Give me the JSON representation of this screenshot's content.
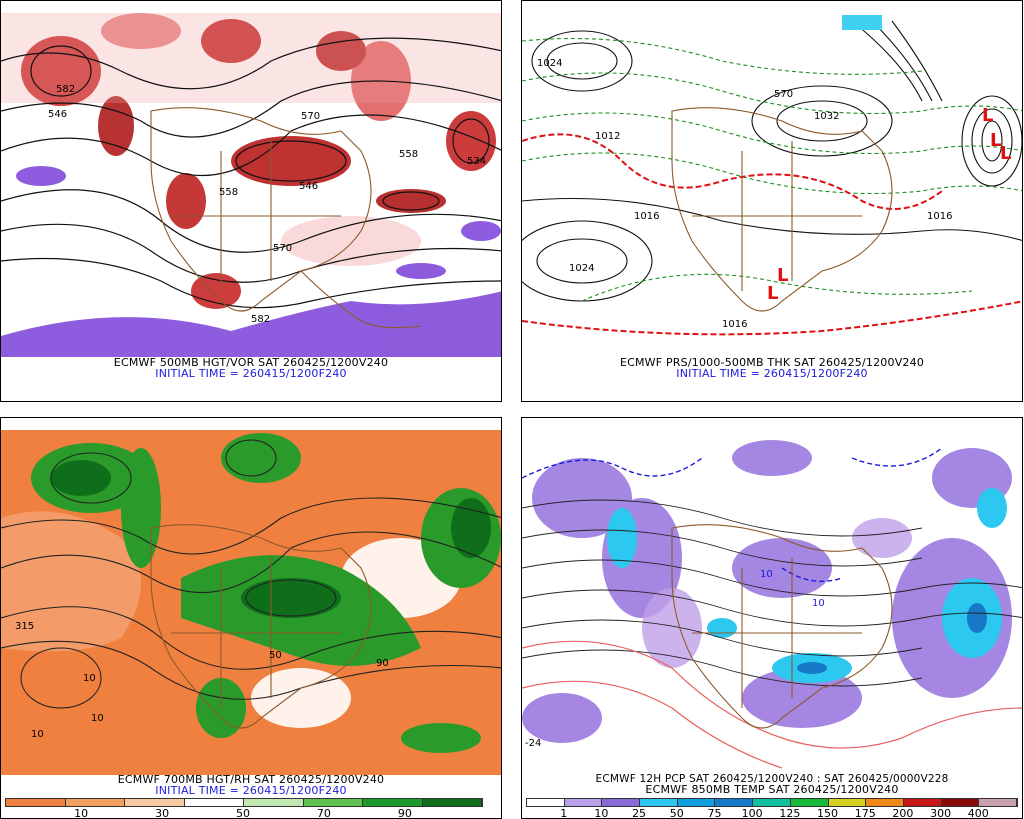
{
  "panels": [
    {
      "title_line1": "ECMWF 500MB HGT/VOR SAT 260425/1200V240",
      "title_line2": "INITIAL TIME = 260415/1200F240",
      "contour_labels": [
        "582",
        "546",
        "570",
        "558",
        "558",
        "546",
        "570",
        "582",
        "534"
      ]
    },
    {
      "title_line1": "ECMWF PRS/1000-500MB THK SAT 260425/1200V240",
      "title_line2": "INITIAL TIME = 260415/1200F240",
      "contour_labels": [
        "1024",
        "1012",
        "1032",
        "1016",
        "1024",
        "570",
        "1016",
        "1016"
      ]
    },
    {
      "title_line1": "ECMWF 700MB HGT/RH SAT 260425/1200V240",
      "title_line2": "INITIAL TIME = 260415/1200F240",
      "contour_labels": [
        "315",
        "10",
        "50",
        "10",
        "90",
        "10"
      ]
    },
    {
      "title_line1": "ECMWF 12H PCP SAT 260425/1200V240 : SAT 260425/0000V228",
      "title_line2": "ECMWF 850MB TEMP SAT 260425/1200V240",
      "contour_labels": [
        "10",
        "10",
        "-24"
      ]
    }
  ],
  "rh_colorbar": {
    "ticks": [
      "10",
      "30",
      "50",
      "70",
      "90"
    ],
    "colors": [
      "#f08040",
      "#f4a060",
      "#f8c8a0",
      "#ffffff",
      "#c0e8b0",
      "#60c050",
      "#1c9a2c",
      "#0e6e1a"
    ]
  },
  "pcp_colorbar": {
    "ticks": [
      "1",
      "10",
      "25",
      "50",
      "75",
      "100",
      "125",
      "150",
      "175",
      "200",
      "300",
      "400"
    ],
    "colors": [
      "#ffffff",
      "#b9a0e8",
      "#8a6ad8",
      "#2cc8f0",
      "#10a0e0",
      "#1878c8",
      "#10c0a0",
      "#18b838",
      "#d8d020",
      "#f08818",
      "#c81818",
      "#8a0a0a",
      "#c8a0b0"
    ]
  }
}
